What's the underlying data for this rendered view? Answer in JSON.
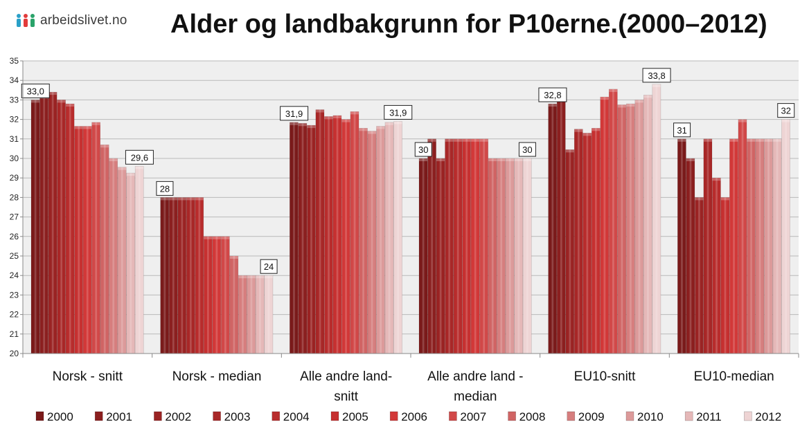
{
  "brand": {
    "name": "arbeidslivet.no"
  },
  "chart_data": {
    "type": "bar",
    "title": "Alder og landbakgrunn for P10erne.(2000–2012)",
    "xlabel": "",
    "ylabel": "",
    "ylim": [
      20,
      35
    ],
    "yticks": [
      20,
      21,
      22,
      23,
      24,
      25,
      26,
      27,
      28,
      29,
      30,
      31,
      32,
      33,
      34,
      35
    ],
    "grid": true,
    "legend_position": "bottom",
    "categories": [
      [
        "Norsk - snitt"
      ],
      [
        "Norsk - median"
      ],
      [
        "Alle andre land-",
        "snitt"
      ],
      [
        "Alle andre land -",
        "median"
      ],
      [
        "EU10-snitt"
      ],
      [
        "EU10-median"
      ]
    ],
    "series": [
      {
        "name": "2000",
        "color": "#7a1a1a",
        "values": [
          33.0,
          28,
          31.85,
          30,
          32.8,
          31
        ]
      },
      {
        "name": "2001",
        "color": "#8b1f1f",
        "values": [
          33.2,
          28,
          31.8,
          31,
          33.3,
          30
        ]
      },
      {
        "name": "2002",
        "color": "#9a2323",
        "values": [
          33.4,
          28,
          31.7,
          30,
          30.45,
          28
        ]
      },
      {
        "name": "2003",
        "color": "#a82727",
        "values": [
          33.0,
          28,
          32.5,
          31,
          31.5,
          31
        ]
      },
      {
        "name": "2004",
        "color": "#b82c2c",
        "values": [
          32.8,
          28,
          32.15,
          31,
          31.3,
          29
        ]
      },
      {
        "name": "2005",
        "color": "#c63030",
        "values": [
          31.65,
          26,
          32.2,
          31,
          31.55,
          28
        ]
      },
      {
        "name": "2006",
        "color": "#d23838",
        "values": [
          31.65,
          26,
          32.0,
          31,
          33.15,
          31
        ]
      },
      {
        "name": "2007",
        "color": "#d14848",
        "values": [
          31.85,
          26,
          32.4,
          31,
          33.55,
          32
        ]
      },
      {
        "name": "2008",
        "color": "#d06464",
        "values": [
          30.7,
          25,
          31.55,
          30,
          32.75,
          31
        ]
      },
      {
        "name": "2009",
        "color": "#d67e7e",
        "values": [
          30.0,
          24,
          31.4,
          30,
          32.8,
          31
        ]
      },
      {
        "name": "2010",
        "color": "#dc9a9a",
        "values": [
          29.55,
          24,
          31.65,
          30,
          33.0,
          31
        ]
      },
      {
        "name": "2011",
        "color": "#e5b8b8",
        "values": [
          29.25,
          24,
          31.85,
          30,
          33.25,
          31
        ]
      },
      {
        "name": "2012",
        "color": "#eed4d4",
        "values": [
          29.6,
          24,
          31.9,
          30,
          33.8,
          32
        ]
      }
    ],
    "data_labels": [
      {
        "category": 0,
        "series": 0,
        "text": "33,0"
      },
      {
        "category": 0,
        "series": 12,
        "text": "29,6"
      },
      {
        "category": 1,
        "series": 0,
        "text": "28"
      },
      {
        "category": 1,
        "series": 12,
        "text": "24"
      },
      {
        "category": 2,
        "series": 0,
        "text": "31,9"
      },
      {
        "category": 2,
        "series": 12,
        "text": "31,9"
      },
      {
        "category": 3,
        "series": 0,
        "text": "30"
      },
      {
        "category": 3,
        "series": 12,
        "text": "30"
      },
      {
        "category": 4,
        "series": 0,
        "text": "32,8"
      },
      {
        "category": 4,
        "series": 12,
        "text": "33,8"
      },
      {
        "category": 5,
        "series": 0,
        "text": "31"
      },
      {
        "category": 5,
        "series": 12,
        "text": "32"
      }
    ]
  }
}
